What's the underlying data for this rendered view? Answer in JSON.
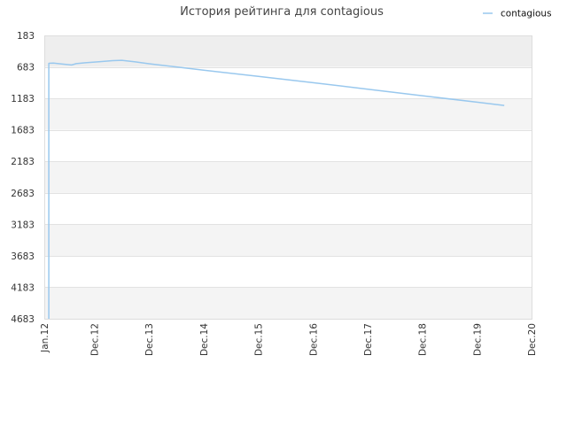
{
  "chart_data": {
    "type": "line",
    "title": "История рейтинга для contagious",
    "xlabel": "",
    "ylabel": "",
    "y_inverted": true,
    "ylim": [
      183,
      4683
    ],
    "y_ticks": [
      183,
      683,
      1183,
      1683,
      2183,
      2683,
      3183,
      3683,
      4183,
      4683
    ],
    "x_ticks": [
      "Jan.12",
      "Dec.12",
      "Dec.13",
      "Dec.14",
      "Dec.15",
      "Dec.16",
      "Dec.17",
      "Dec.18",
      "Dec.19",
      "Dec.20"
    ],
    "x_tick_dates": [
      "2012-01",
      "2012-12",
      "2013-12",
      "2014-12",
      "2015-12",
      "2016-12",
      "2017-12",
      "2018-12",
      "2019-12",
      "2020-12"
    ],
    "grid": true,
    "legend_position": "top-right",
    "series_color": "#99c8ee",
    "series": [
      {
        "name": "contagious",
        "points": [
          {
            "x": "2012-02",
            "y": 4683
          },
          {
            "x": "2012-02",
            "y": 626
          },
          {
            "x": "2012-03",
            "y": 623
          },
          {
            "x": "2012-05",
            "y": 638
          },
          {
            "x": "2012-07",
            "y": 652
          },
          {
            "x": "2012-08",
            "y": 631
          },
          {
            "x": "2012-10",
            "y": 618
          },
          {
            "x": "2013-01",
            "y": 600
          },
          {
            "x": "2013-04",
            "y": 584
          },
          {
            "x": "2013-06",
            "y": 578
          },
          {
            "x": "2013-09",
            "y": 604
          },
          {
            "x": "2013-12",
            "y": 633
          },
          {
            "x": "2014-06",
            "y": 683
          },
          {
            "x": "2014-12",
            "y": 735
          },
          {
            "x": "2015-12",
            "y": 832
          },
          {
            "x": "2016-12",
            "y": 934
          },
          {
            "x": "2017-12",
            "y": 1036
          },
          {
            "x": "2018-12",
            "y": 1140
          },
          {
            "x": "2019-12",
            "y": 1243
          },
          {
            "x": "2020-06",
            "y": 1296
          }
        ]
      }
    ]
  }
}
